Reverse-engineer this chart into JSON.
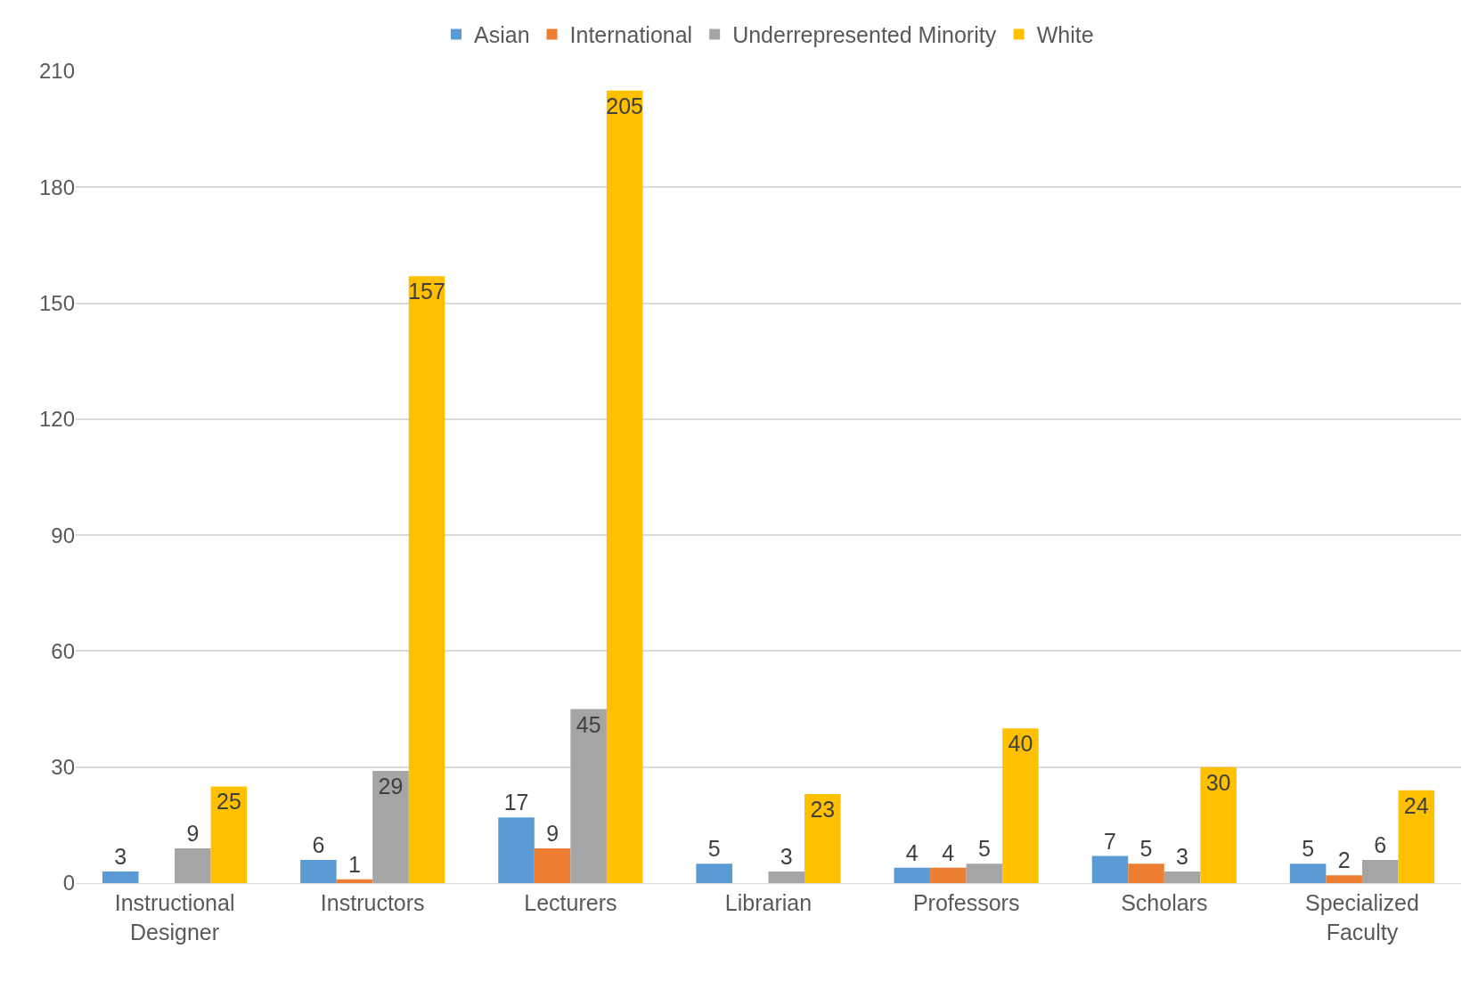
{
  "chart_data": {
    "type": "bar",
    "categories": [
      "Instructional Designer",
      "Instructors",
      "Lecturers",
      "Librarian",
      "Professors",
      "Scholars",
      "Specialized Faculty"
    ],
    "series": [
      {
        "name": "Asian",
        "color": "#5b9bd5",
        "values": [
          3,
          6,
          17,
          5,
          4,
          7,
          5
        ]
      },
      {
        "name": "International",
        "color": "#ed7d31",
        "values": [
          null,
          1,
          9,
          null,
          4,
          5,
          2
        ]
      },
      {
        "name": "Underrepresented Minority",
        "color": "#a5a5a5",
        "values": [
          9,
          29,
          45,
          3,
          5,
          3,
          6
        ]
      },
      {
        "name": "White",
        "color": "#ffc000",
        "values": [
          25,
          157,
          205,
          23,
          40,
          30,
          24
        ]
      }
    ],
    "ylim": [
      0,
      210
    ],
    "yticks": [
      0,
      30,
      60,
      90,
      120,
      150,
      180,
      210
    ],
    "grid": "y",
    "legend": "top",
    "data_labels": true
  }
}
